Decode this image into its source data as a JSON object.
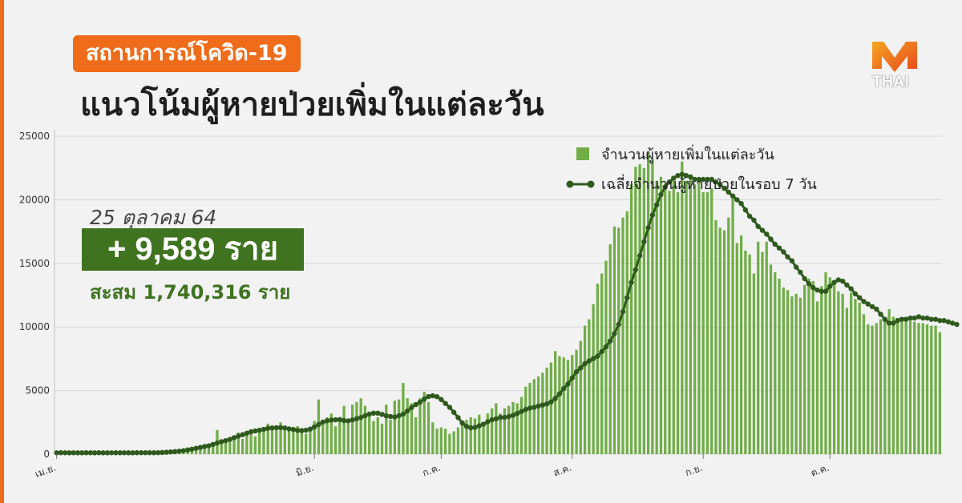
{
  "header": {
    "tag": "สถานการณ์โควิด-19",
    "title": "แนวโน้มผู้หายป่วยเพิ่มในแต่ละวัน"
  },
  "brand": {
    "logo_text": "THAI"
  },
  "highlight": {
    "date": "25 ตุลาคม 64",
    "new_cases": "+ 9,589 ราย",
    "cumulative": "สะสม 1,740,316 ราย"
  },
  "colors": {
    "accent": "#ef6c1a",
    "bar": "#70ad47",
    "line": "#2f5a1d",
    "highlight_box": "#3f7320"
  },
  "chart_data": {
    "type": "bar",
    "x_start": "1 เม.ย.",
    "x_end": "25 ต.ค.",
    "ylim": [
      0,
      25000
    ],
    "yticks": [
      0,
      5000,
      10000,
      15000,
      20000,
      25000
    ],
    "grid": true,
    "legend_position": "top-right",
    "x_tick_labels": [
      {
        "label": "เม.ย.",
        "day": 1
      },
      {
        "label": "มิ.ย.",
        "day": 62
      },
      {
        "label": "ก.ค.",
        "day": 92
      },
      {
        "label": "ส.ค.",
        "day": 123
      },
      {
        "label": "ก.ย.",
        "day": 154
      },
      {
        "label": "ต.ค.",
        "day": 184
      }
    ],
    "series": [
      {
        "name": "จำนวนผู้หายเพิ่มในแต่ละวัน",
        "type": "bar",
        "values": [
          100,
          120,
          110,
          100,
          130,
          90,
          100,
          120,
          110,
          100,
          130,
          90,
          100,
          120,
          110,
          100,
          130,
          90,
          100,
          120,
          110,
          100,
          130,
          90,
          100,
          120,
          110,
          100,
          130,
          90,
          200,
          300,
          250,
          400,
          350,
          500,
          600,
          700,
          1900,
          800,
          900,
          1000,
          1100,
          1700,
          1200,
          1500,
          1800,
          1400,
          1900,
          2100,
          2400,
          2200,
          2000,
          2500,
          2100,
          1900,
          1800,
          2200,
          1700,
          1600,
          2100,
          2600,
          4300,
          2500,
          2900,
          3200,
          2200,
          2600,
          3800,
          2400,
          3900,
          4100,
          4400,
          3800,
          3100,
          2600,
          2900,
          2400,
          3900,
          2700,
          4200,
          4300,
          5600,
          4400,
          4000,
          2900,
          4400,
          4900,
          4100,
          2500,
          2000,
          2100,
          2000,
          1600,
          1800,
          2100,
          2400,
          2700,
          2900,
          2800,
          3100,
          2500,
          3200,
          3600,
          4000,
          3200,
          3600,
          3800,
          4100,
          4000,
          4500,
          5300,
          5600,
          5900,
          6100,
          6400,
          6800,
          7200,
          8100,
          7700,
          7600,
          7400,
          7800,
          8200,
          8900,
          10100,
          10600,
          11800,
          13400,
          14200,
          15200,
          16500,
          17900,
          17800,
          18600,
          19100,
          21200,
          22600,
          22800,
          22500,
          23700,
          23200,
          21500,
          21800,
          21300,
          20700,
          21500,
          20600,
          23000,
          21500,
          21900,
          21200,
          21400,
          20600,
          20600,
          20900,
          18400,
          17800,
          17600,
          18600,
          20100,
          16600,
          17200,
          16000,
          15700,
          14200,
          16700,
          15900,
          16700,
          14900,
          14300,
          13800,
          13100,
          12900,
          12400,
          12600,
          12300,
          13300,
          13800,
          13600,
          12000,
          13200,
          14300,
          13900,
          13400,
          12800,
          12600,
          11500,
          12700,
          12200,
          11900,
          11000,
          10200,
          10100,
          10300,
          10600,
          10700,
          11400,
          10800,
          10700,
          10600,
          10500,
          10500,
          10400,
          10300,
          10300,
          10200,
          10100,
          10100,
          9589
        ]
      },
      {
        "name": "เฉลี่ยจำนวนผู้หายป่วยในรอบ 7 วัน",
        "type": "line",
        "values": [
          105,
          110,
          108,
          106,
          108,
          105,
          107,
          110,
          109,
          107,
          110,
          104,
          106,
          109,
          110,
          108,
          109,
          105,
          107,
          110,
          112,
          112,
          113,
          110,
          115,
          130,
          150,
          175,
          200,
          230,
          270,
          330,
          390,
          460,
          530,
          600,
          660,
          760,
          880,
          980,
          1060,
          1160,
          1290,
          1420,
          1530,
          1650,
          1760,
          1820,
          1880,
          1950,
          2030,
          2060,
          2080,
          2090,
          2060,
          1990,
          1940,
          1870,
          1850,
          1880,
          1970,
          2140,
          2330,
          2520,
          2620,
          2680,
          2700,
          2720,
          2640,
          2610,
          2690,
          2780,
          2880,
          3020,
          3150,
          3220,
          3220,
          3130,
          3010,
          2960,
          2920,
          3020,
          3150,
          3390,
          3670,
          3900,
          4090,
          4330,
          4530,
          4590,
          4520,
          4300,
          3990,
          3680,
          3290,
          2880,
          2450,
          2180,
          2070,
          2100,
          2230,
          2360,
          2540,
          2700,
          2780,
          2890,
          2890,
          2960,
          3050,
          3200,
          3350,
          3510,
          3620,
          3680,
          3780,
          3860,
          3950,
          4100,
          4380,
          4740,
          5160,
          5520,
          5990,
          6470,
          6780,
          7110,
          7330,
          7510,
          7700,
          8060,
          8440,
          8900,
          9480,
          10200,
          11200,
          12300,
          13500,
          14500,
          15600,
          16700,
          17800,
          18800,
          19600,
          20400,
          21000,
          21400,
          21700,
          21900,
          22000,
          21900,
          21800,
          21600,
          21600,
          21600,
          21600,
          21600,
          21400,
          21200,
          20900,
          20600,
          20300,
          20000,
          19700,
          19200,
          18700,
          18400,
          17900,
          17600,
          17300,
          16900,
          16500,
          16200,
          15900,
          15500,
          15200,
          14700,
          14300,
          13800,
          13400,
          13100,
          12900,
          12800,
          12800,
          13200,
          13500,
          13700,
          13600,
          13300,
          13000,
          12600,
          12300,
          12000,
          11800,
          11600,
          11400,
          11000,
          10600,
          10300,
          10300,
          10500,
          10600,
          10600,
          10700,
          10700,
          10800,
          10700,
          10700,
          10600,
          10600,
          10500,
          10500,
          10400,
          10300,
          10200
        ]
      }
    ]
  }
}
